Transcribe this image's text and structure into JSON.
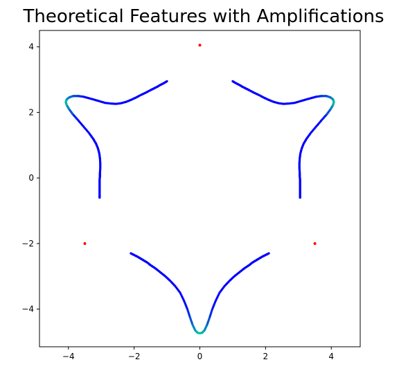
{
  "chart_data": {
    "type": "scatter",
    "title": "Theoretical Features with Amplifications",
    "xlabel": "",
    "ylabel": "",
    "xlim": [
      -4.88,
      4.88
    ],
    "ylim": [
      -5.15,
      4.5
    ],
    "xticks": [
      -4,
      -2,
      0,
      2,
      4
    ],
    "yticks": [
      -4,
      -2,
      0,
      2,
      4
    ],
    "grid": false,
    "colors": {
      "low": "#0000ff",
      "high": "#00c8a0",
      "marker": "#ff0000",
      "axes": "#000000"
    },
    "series": [
      {
        "role": "curve",
        "points": [
          [
            -3.05,
            -0.6
          ],
          [
            -3.05,
            -0.55
          ],
          [
            -3.05,
            -0.45
          ],
          [
            -3.05,
            -0.35
          ],
          [
            -3.05,
            -0.25
          ],
          [
            -3.05,
            -0.15
          ],
          [
            -3.05,
            -0.05
          ],
          [
            -3.04,
            0.05
          ],
          [
            -3.04,
            0.15
          ],
          [
            -3.03,
            0.3
          ],
          [
            -3.03,
            0.45
          ],
          [
            -3.04,
            0.6
          ],
          [
            -3.06,
            0.75
          ],
          [
            -3.1,
            0.9
          ],
          [
            -3.16,
            1.05
          ],
          [
            -3.25,
            1.2
          ],
          [
            -3.38,
            1.38
          ],
          [
            -3.55,
            1.58
          ],
          [
            -3.72,
            1.78
          ],
          [
            -3.87,
            1.95
          ],
          [
            -3.98,
            2.1
          ],
          [
            -4.05,
            2.22
          ],
          [
            -4.08,
            2.32
          ],
          [
            -4.05,
            2.4
          ],
          [
            -3.97,
            2.46
          ],
          [
            -3.85,
            2.5
          ],
          [
            -3.7,
            2.5
          ],
          [
            -3.55,
            2.48
          ],
          [
            -3.4,
            2.44
          ],
          [
            -3.22,
            2.39
          ],
          [
            -3.05,
            2.34
          ],
          [
            -2.88,
            2.29
          ],
          [
            -2.7,
            2.27
          ],
          [
            -2.55,
            2.26
          ],
          [
            -2.4,
            2.28
          ],
          [
            -2.25,
            2.32
          ],
          [
            -2.1,
            2.38
          ],
          [
            -1.95,
            2.45
          ],
          [
            -1.8,
            2.53
          ],
          [
            -1.65,
            2.6
          ],
          [
            -1.5,
            2.68
          ],
          [
            -1.4,
            2.73
          ],
          [
            -1.3,
            2.78
          ],
          [
            -1.2,
            2.84
          ],
          [
            -1.1,
            2.89
          ],
          [
            -1.0,
            2.95
          ],
          [
            3.05,
            -0.6
          ],
          [
            3.05,
            -0.55
          ],
          [
            3.05,
            -0.45
          ],
          [
            3.05,
            -0.35
          ],
          [
            3.05,
            -0.25
          ],
          [
            3.05,
            -0.15
          ],
          [
            3.05,
            -0.05
          ],
          [
            3.04,
            0.05
          ],
          [
            3.04,
            0.15
          ],
          [
            3.03,
            0.3
          ],
          [
            3.03,
            0.45
          ],
          [
            3.04,
            0.6
          ],
          [
            3.06,
            0.75
          ],
          [
            3.1,
            0.9
          ],
          [
            3.16,
            1.05
          ],
          [
            3.25,
            1.2
          ],
          [
            3.38,
            1.38
          ],
          [
            3.55,
            1.58
          ],
          [
            3.72,
            1.78
          ],
          [
            3.87,
            1.95
          ],
          [
            3.98,
            2.1
          ],
          [
            4.05,
            2.22
          ],
          [
            4.08,
            2.32
          ],
          [
            4.05,
            2.4
          ],
          [
            3.97,
            2.46
          ],
          [
            3.85,
            2.5
          ],
          [
            3.7,
            2.5
          ],
          [
            3.55,
            2.48
          ],
          [
            3.4,
            2.44
          ],
          [
            3.22,
            2.39
          ],
          [
            3.05,
            2.34
          ],
          [
            2.88,
            2.29
          ],
          [
            2.7,
            2.27
          ],
          [
            2.55,
            2.26
          ],
          [
            2.4,
            2.28
          ],
          [
            2.25,
            2.32
          ],
          [
            2.1,
            2.38
          ],
          [
            1.95,
            2.45
          ],
          [
            1.8,
            2.53
          ],
          [
            1.65,
            2.6
          ],
          [
            1.5,
            2.68
          ],
          [
            1.4,
            2.73
          ],
          [
            1.3,
            2.78
          ],
          [
            1.2,
            2.84
          ],
          [
            1.1,
            2.89
          ],
          [
            1.0,
            2.95
          ],
          [
            -2.1,
            -2.3
          ],
          [
            -2.0,
            -2.35
          ],
          [
            -1.9,
            -2.4
          ],
          [
            -1.8,
            -2.46
          ],
          [
            -1.7,
            -2.52
          ],
          [
            -1.6,
            -2.58
          ],
          [
            -1.5,
            -2.66
          ],
          [
            -1.35,
            -2.76
          ],
          [
            -1.2,
            -2.88
          ],
          [
            -1.05,
            -3.0
          ],
          [
            -0.9,
            -3.14
          ],
          [
            -0.75,
            -3.3
          ],
          [
            -0.6,
            -3.5
          ],
          [
            -0.48,
            -3.75
          ],
          [
            -0.38,
            -4.0
          ],
          [
            -0.3,
            -4.25
          ],
          [
            -0.22,
            -4.48
          ],
          [
            -0.14,
            -4.65
          ],
          [
            -0.07,
            -4.72
          ],
          [
            0.0,
            -4.74
          ],
          [
            0.07,
            -4.72
          ],
          [
            0.14,
            -4.65
          ],
          [
            0.22,
            -4.48
          ],
          [
            0.3,
            -4.25
          ],
          [
            0.38,
            -4.0
          ],
          [
            0.48,
            -3.75
          ],
          [
            0.6,
            -3.5
          ],
          [
            0.75,
            -3.3
          ],
          [
            0.9,
            -3.14
          ],
          [
            1.05,
            -3.0
          ],
          [
            1.2,
            -2.88
          ],
          [
            1.35,
            -2.76
          ],
          [
            1.5,
            -2.66
          ],
          [
            1.6,
            -2.58
          ],
          [
            1.7,
            -2.52
          ],
          [
            1.8,
            -2.46
          ],
          [
            1.9,
            -2.4
          ],
          [
            2.0,
            -2.35
          ],
          [
            2.1,
            -2.3
          ]
        ],
        "amplification": [
          0,
          0,
          0,
          0,
          0,
          0,
          0,
          0,
          0,
          0,
          0,
          0,
          0,
          0,
          0,
          0,
          0,
          0,
          0,
          0.3,
          0.55,
          0.8,
          1.0,
          0.85,
          0.6,
          0.4,
          0.25,
          0.1,
          0,
          0,
          0,
          0,
          0,
          0,
          0,
          0,
          0,
          0,
          0,
          0,
          0,
          0,
          0,
          0,
          0,
          0,
          0,
          0,
          0,
          0,
          0,
          0,
          0,
          0,
          0,
          0,
          0,
          0,
          0,
          0,
          0,
          0,
          0,
          0,
          0,
          0.3,
          0.55,
          0.8,
          1.0,
          0.85,
          0.6,
          0.4,
          0.25,
          0.1,
          0,
          0,
          0,
          0,
          0,
          0,
          0,
          0,
          0,
          0,
          0,
          0,
          0,
          0,
          0,
          0,
          0,
          0,
          0,
          0,
          0,
          0,
          0,
          0,
          0,
          0,
          0,
          0,
          0,
          0,
          0,
          0,
          0.1,
          0.3,
          0.55,
          0.8,
          0.95,
          1.0,
          0.95,
          0.8,
          0.55,
          0.3,
          0.1,
          0,
          0,
          0,
          0,
          0,
          0,
          0,
          0,
          0,
          0,
          0,
          0,
          0,
          0
        ]
      },
      {
        "role": "markers",
        "points": [
          [
            0.0,
            4.05
          ],
          [
            -3.5,
            -2.0
          ],
          [
            3.5,
            -2.0
          ]
        ]
      }
    ]
  }
}
